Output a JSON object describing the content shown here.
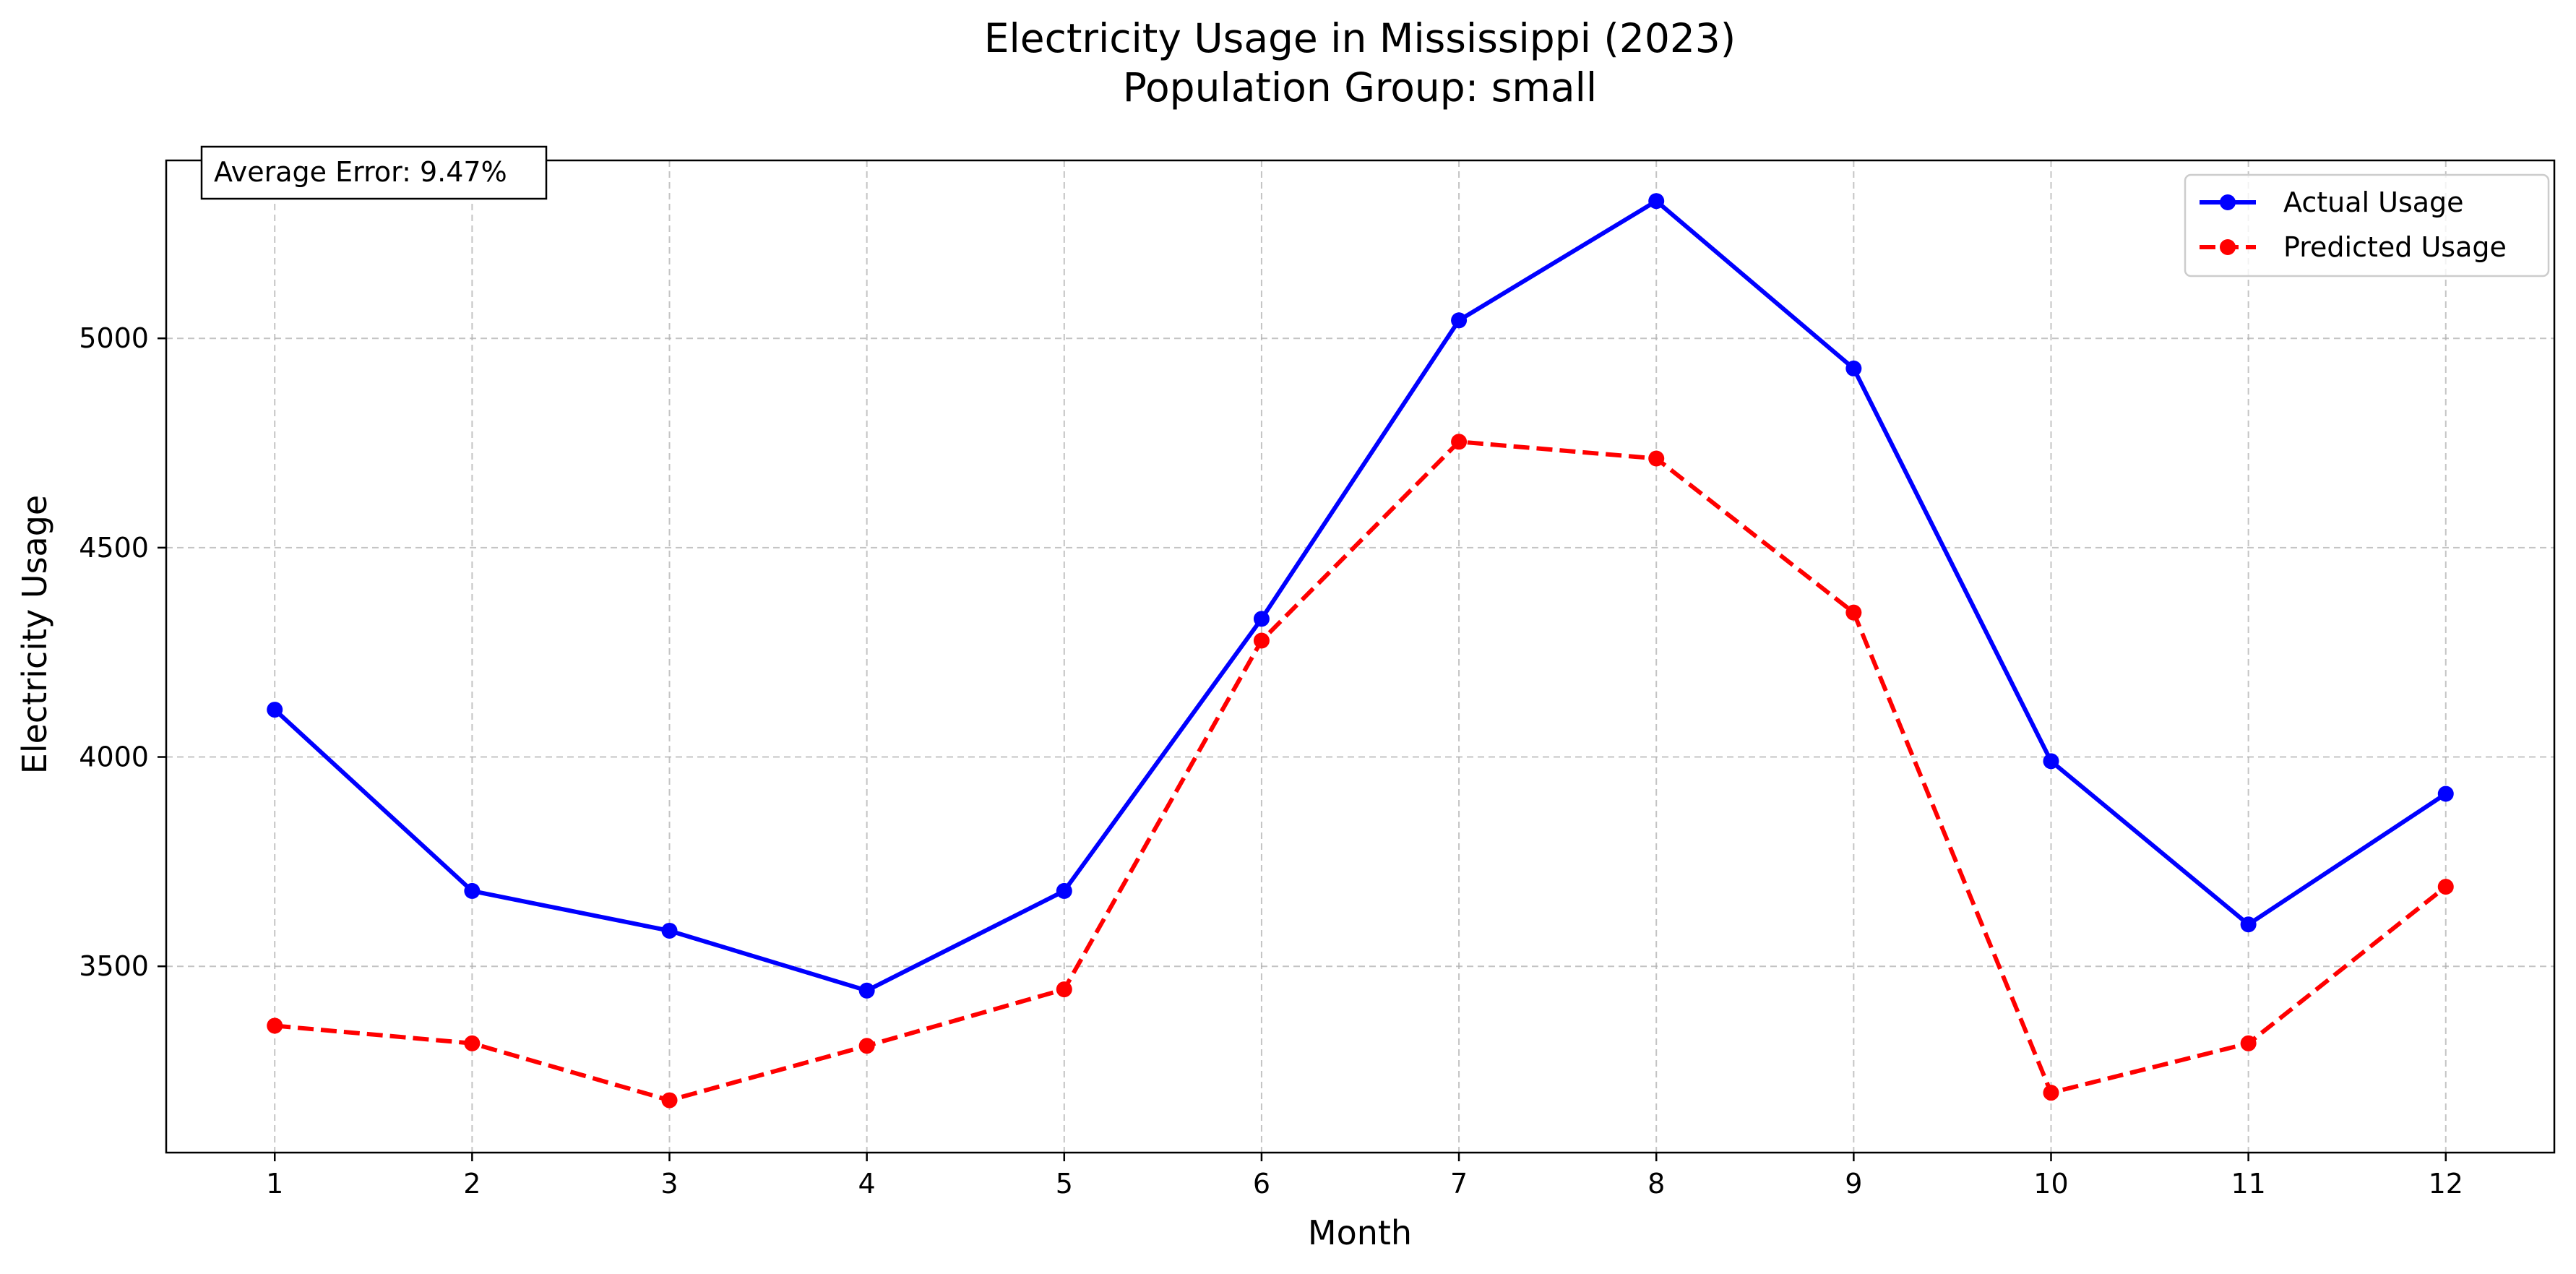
{
  "chart_data": {
    "type": "line",
    "title": "Electricity Usage in Mississippi (2023)",
    "subtitle": "Population Group: small",
    "xlabel": "Month",
    "ylabel": "Electricity Usage",
    "x": [
      1,
      2,
      3,
      4,
      5,
      6,
      7,
      8,
      9,
      10,
      11,
      12
    ],
    "x_ticks": [
      "1",
      "2",
      "3",
      "4",
      "5",
      "6",
      "7",
      "8",
      "9",
      "10",
      "11",
      "12"
    ],
    "y_ticks": [
      3500,
      4000,
      4500,
      5000
    ],
    "xlim": [
      0.45,
      12.55
    ],
    "ylim": [
      3055,
      5425
    ],
    "grid": true,
    "legend_position": "top-right",
    "annotation": "Average Error: 9.47%",
    "series": [
      {
        "name": "Actual Usage",
        "color": "#0000ff",
        "linestyle": "solid",
        "marker": "circle",
        "values": [
          4113,
          3680,
          3585,
          3442,
          3680,
          4330,
          5043,
          5328,
          4928,
          3990,
          3600,
          3912
        ]
      },
      {
        "name": "Predicted Usage",
        "color": "#ff0000",
        "linestyle": "dashed",
        "marker": "circle",
        "values": [
          3358,
          3316,
          3180,
          3310,
          3445,
          4278,
          4753,
          4713,
          4345,
          3198,
          3316,
          3690
        ]
      }
    ]
  }
}
